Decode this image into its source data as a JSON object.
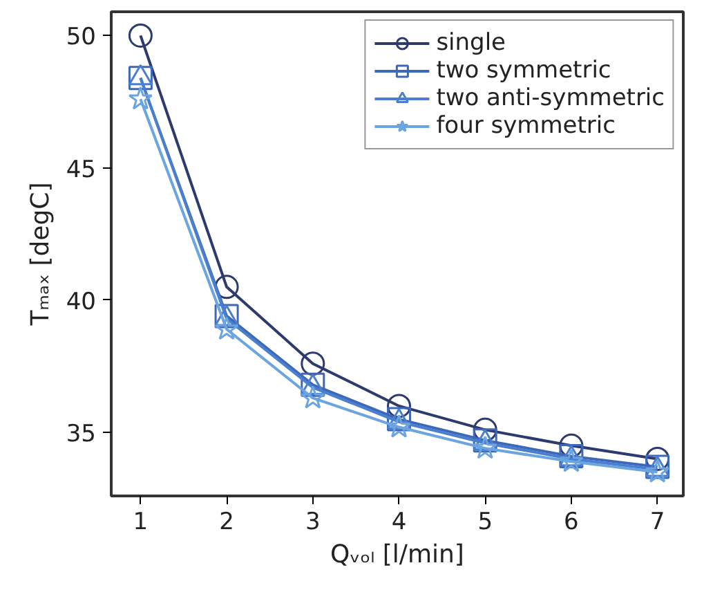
{
  "chart_data": {
    "type": "line",
    "xlabel": "Qᵥₒₗ [l/min]",
    "ylabel": "Tₘₐₓ [degC]",
    "x": [
      1,
      2,
      3,
      4,
      5,
      6,
      7
    ],
    "series": [
      {
        "name": "single",
        "color": "#2d3a6e",
        "marker": "circle",
        "values": [
          50.0,
          40.5,
          37.6,
          36.0,
          35.1,
          34.5,
          34.0
        ]
      },
      {
        "name": "two symmetric",
        "color": "#3d68b8",
        "marker": "square",
        "values": [
          48.4,
          39.4,
          36.8,
          35.5,
          34.7,
          34.1,
          33.7
        ]
      },
      {
        "name": "two anti-symmetric",
        "color": "#4a7fd0",
        "marker": "triangle",
        "values": [
          48.4,
          39.3,
          36.7,
          35.4,
          34.6,
          34.0,
          33.6
        ]
      },
      {
        "name": "four symmetric",
        "color": "#6aa5e0",
        "marker": "star",
        "values": [
          47.6,
          38.9,
          36.3,
          35.2,
          34.4,
          33.9,
          33.5
        ]
      }
    ],
    "xlim": [
      0.66,
      7.3
    ],
    "ylim": [
      32.6,
      50.9
    ],
    "xticks": [
      1,
      2,
      3,
      4,
      5,
      6,
      7
    ],
    "yticks": [
      35,
      40,
      45,
      50
    ],
    "grid": false,
    "legend": "top right"
  }
}
